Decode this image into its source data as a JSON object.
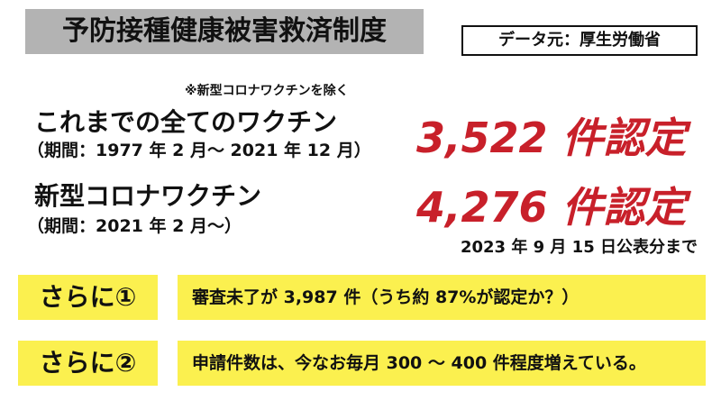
{
  "header": {
    "title": "予防接種健康被害救済制度",
    "source": "データ元：厚生労働省"
  },
  "note": "※新型コロナワクチンを除く",
  "rows": [
    {
      "label": "これまでの全てのワクチン",
      "period": "（期間：1977 年 2 月～ 2021 年 12 月）",
      "count": "3,522 件認定"
    },
    {
      "label": "新型コロナワクチン",
      "period": "（期間：2021 年 2 月～）",
      "count": "4,276 件認定"
    }
  ],
  "as_of": "2023 年 9 月 15 日公表分まで",
  "extras": [
    {
      "tag": "さらに①",
      "text": "審査未了が 3,987 件（うち約 87%が認定か？）"
    },
    {
      "tag": "さらに②",
      "text": "申請件数は、今なお毎月 300 ～ 400 件程度増えている。"
    }
  ]
}
